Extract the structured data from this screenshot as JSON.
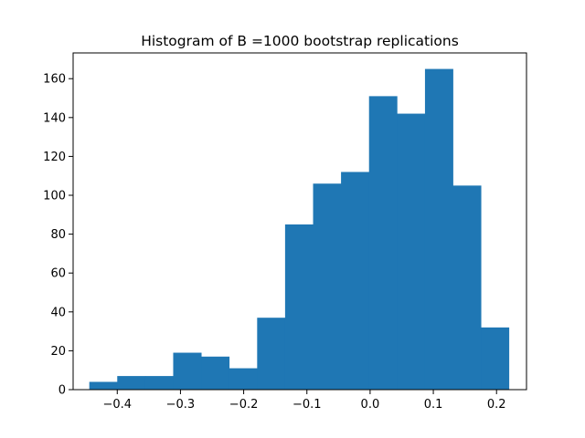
{
  "chart_data": {
    "type": "bar",
    "title": "Histogram of B =1000 bootstrap replications",
    "xlabel": "",
    "ylabel": "",
    "color": "#1f77b4",
    "xlim": [
      -0.4698,
      0.2474
    ],
    "ylim": [
      0,
      173.25
    ],
    "grid": false,
    "x_ticks": [
      {
        "value": -0.4,
        "label": "−0.4"
      },
      {
        "value": -0.3,
        "label": "−0.3"
      },
      {
        "value": -0.2,
        "label": "−0.2"
      },
      {
        "value": -0.1,
        "label": "−0.1"
      },
      {
        "value": 0.0,
        "label": "0.0"
      },
      {
        "value": 0.1,
        "label": "0.1"
      },
      {
        "value": 0.2,
        "label": "0.2"
      }
    ],
    "y_ticks": [
      {
        "value": 0,
        "label": "0"
      },
      {
        "value": 20,
        "label": "20"
      },
      {
        "value": 40,
        "label": "40"
      },
      {
        "value": 60,
        "label": "60"
      },
      {
        "value": 80,
        "label": "80"
      },
      {
        "value": 100,
        "label": "100"
      },
      {
        "value": 120,
        "label": "120"
      },
      {
        "value": 140,
        "label": "140"
      },
      {
        "value": 160,
        "label": "160"
      }
    ],
    "bin_edges": [
      -0.4442,
      -0.4,
      -0.3557,
      -0.3115,
      -0.2672,
      -0.223,
      -0.1787,
      -0.1345,
      -0.0902,
      -0.046,
      -0.0017,
      0.0425,
      0.0868,
      0.131,
      0.1753,
      0.2195
    ],
    "counts": [
      4,
      7,
      7,
      19,
      17,
      11,
      37,
      85,
      106,
      112,
      151,
      142,
      165,
      105,
      32
    ]
  }
}
